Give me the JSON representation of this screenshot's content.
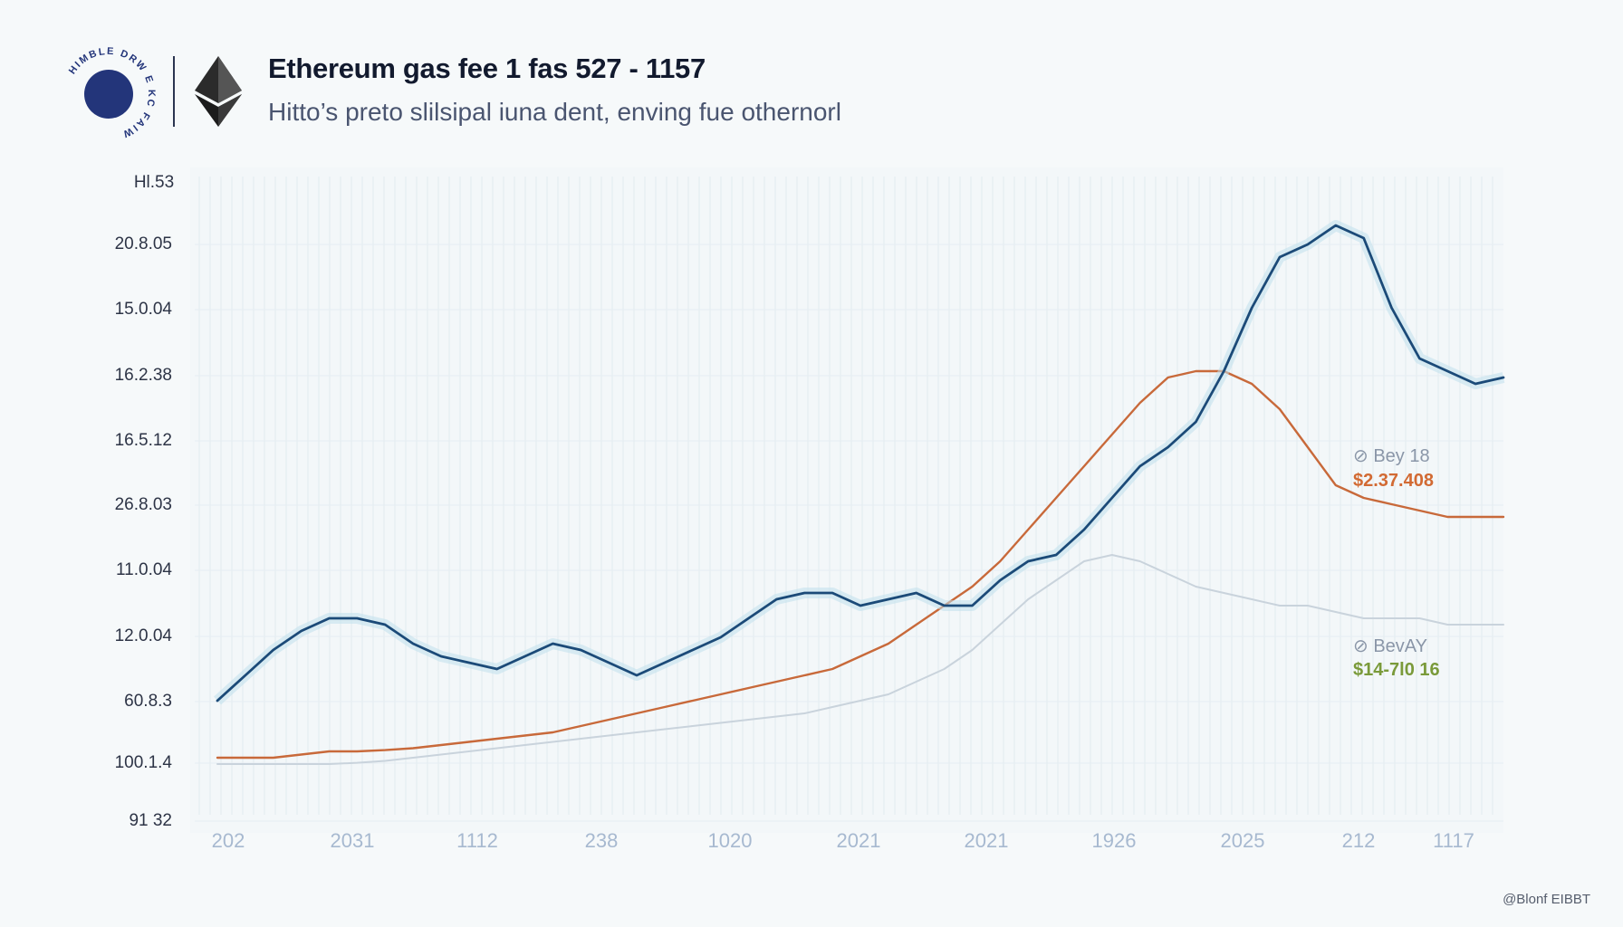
{
  "header": {
    "title": "Ethereum gas fee 1 fas 527 - 1157",
    "subtitle": "Hitto’s preto slilsipal iuna dent, enving fue othernorl",
    "seal_text": "HIMBLE DRW E KC FAIW"
  },
  "credit": "@Blonf EIBBT",
  "chart_data": {
    "type": "line",
    "title": "Ethereum gas fee 1 fas 527 - 1157",
    "subtitle": "Hitto’s preto slilsipal iuna dent, enving fue othernorl",
    "ylabel": "Hl.53",
    "y_tick_labels": [
      "20.8.05",
      "15.0.04",
      "16.2.38",
      "16.5.12",
      "26.8.03",
      "11.0.04",
      "12.0.04",
      "60.8.3",
      "100.1.4",
      "91 32"
    ],
    "x_tick_labels": [
      "202",
      "2031",
      "1112",
      "238",
      "1020",
      "2021",
      "2021",
      "1926",
      "2025",
      "212",
      "1117"
    ],
    "x": [
      0,
      2,
      4,
      6,
      8,
      10,
      12,
      14,
      16,
      18,
      20,
      22,
      24,
      26,
      28,
      30,
      32,
      34,
      36,
      38,
      40,
      42,
      44,
      46,
      48,
      50,
      52,
      54,
      56,
      58,
      60,
      62,
      64,
      66,
      68,
      70,
      72,
      74,
      76,
      78,
      80,
      82,
      84,
      86,
      88,
      90,
      92
    ],
    "xlim": [
      0,
      92
    ],
    "ylim": [
      0,
      100
    ],
    "grid": true,
    "series": [
      {
        "color": "#1b4a78",
        "values": [
          18,
          22,
          26,
          29,
          31,
          31,
          30,
          27,
          25,
          24,
          23,
          25,
          27,
          26,
          24,
          22,
          24,
          26,
          28,
          31,
          34,
          35,
          35,
          33,
          34,
          35,
          33,
          33,
          37,
          40,
          41,
          45,
          50,
          55,
          58,
          62,
          70,
          80,
          88,
          90,
          93,
          91,
          80,
          72,
          70,
          68,
          69
        ]
      },
      {
        "color": "#c8693a",
        "values": [
          9,
          9,
          9,
          9.5,
          10,
          10,
          10.2,
          10.5,
          11,
          11.5,
          12,
          12.5,
          13,
          14,
          15,
          16,
          17,
          18,
          19,
          20,
          21,
          22,
          23,
          25,
          27,
          30,
          33,
          36,
          40,
          45,
          50,
          55,
          60,
          65,
          69,
          70,
          70,
          68,
          64,
          58,
          52,
          50,
          49,
          48,
          47,
          47,
          47
        ]
      },
      {
        "color": "#c9d3dc",
        "values": [
          8,
          8,
          8,
          8,
          8,
          8.2,
          8.5,
          9,
          9.5,
          10,
          10.5,
          11,
          11.5,
          12,
          12.5,
          13,
          13.5,
          14,
          14.5,
          15,
          15.5,
          16,
          17,
          18,
          19,
          21,
          23,
          26,
          30,
          34,
          37,
          40,
          41,
          40,
          38,
          36,
          35,
          34,
          33,
          33,
          32,
          31,
          31,
          31,
          30,
          30,
          30
        ]
      }
    ],
    "annotations": [
      {
        "label": "⊘ Bey 18",
        "value": "$2.37.408",
        "label_color": "#8a96a8",
        "value_color": "#d26a33"
      },
      {
        "label": "⊘ BevAY",
        "value": "$14-7l0 16",
        "label_color": "#8a96a8",
        "value_color": "#7a9a3a"
      }
    ]
  }
}
